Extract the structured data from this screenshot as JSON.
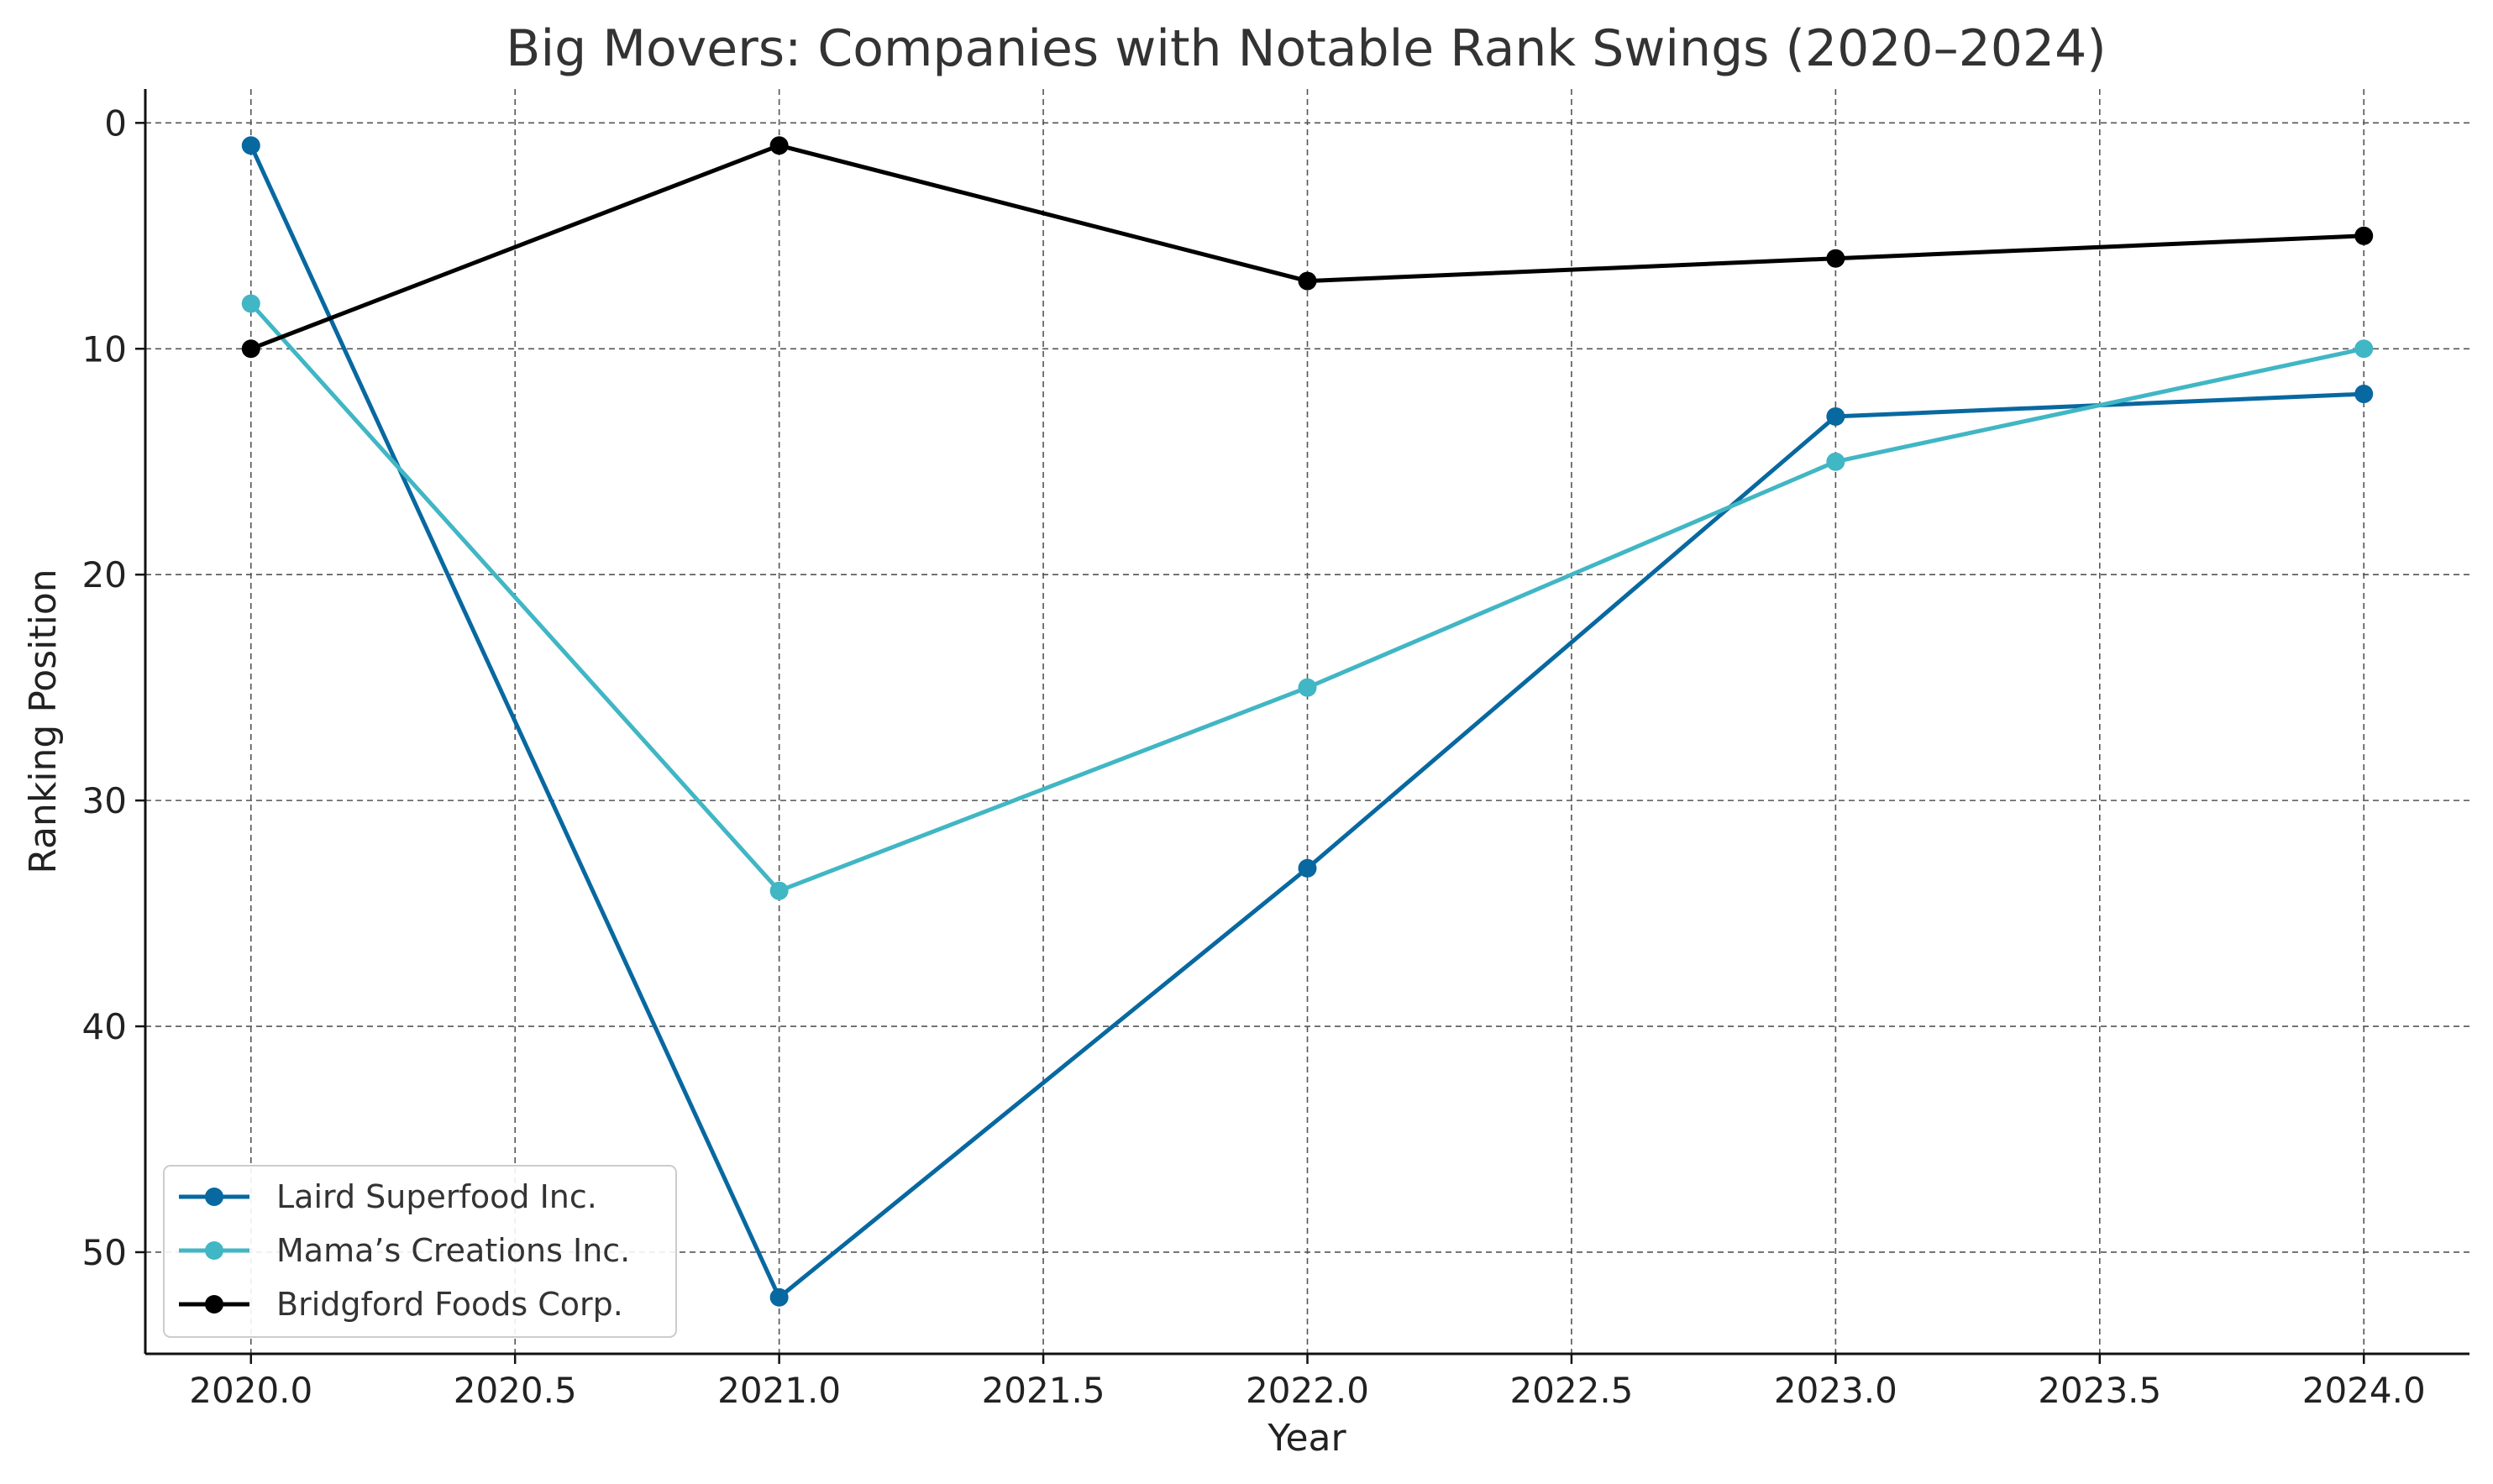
{
  "chart_data": {
    "type": "line",
    "title": "Big Movers: Companies with Notable Rank Swings (2020–2024)",
    "xlabel": "Year",
    "ylabel": "Ranking Position",
    "x": [
      2020,
      2021,
      2022,
      2023,
      2024
    ],
    "xlim": [
      2019.8,
      2024.2
    ],
    "ylim": [
      54.5,
      -1.5
    ],
    "y_inverted": true,
    "xticks": [
      2020.0,
      2020.5,
      2021.0,
      2021.5,
      2022.0,
      2022.5,
      2023.0,
      2023.5,
      2024.0
    ],
    "xtick_labels": [
      "2020.0",
      "2020.5",
      "2021.0",
      "2021.5",
      "2022.0",
      "2022.5",
      "2023.0",
      "2023.5",
      "2024.0"
    ],
    "yticks": [
      0,
      10,
      20,
      30,
      40,
      50
    ],
    "ytick_labels": [
      "0",
      "10",
      "20",
      "30",
      "40",
      "50"
    ],
    "grid": true,
    "legend_position": "lower-left",
    "series": [
      {
        "name": "Laird Superfood Inc.",
        "color": "#0868a0",
        "values": [
          1,
          52,
          33,
          13,
          12
        ]
      },
      {
        "name": "Mama’s Creations Inc.",
        "color": "#41b6c4",
        "values": [
          8,
          34,
          25,
          15,
          10
        ]
      },
      {
        "name": "Bridgford Foods Corp.",
        "color": "#000000",
        "values": [
          10,
          1,
          7,
          6,
          5
        ]
      }
    ]
  }
}
